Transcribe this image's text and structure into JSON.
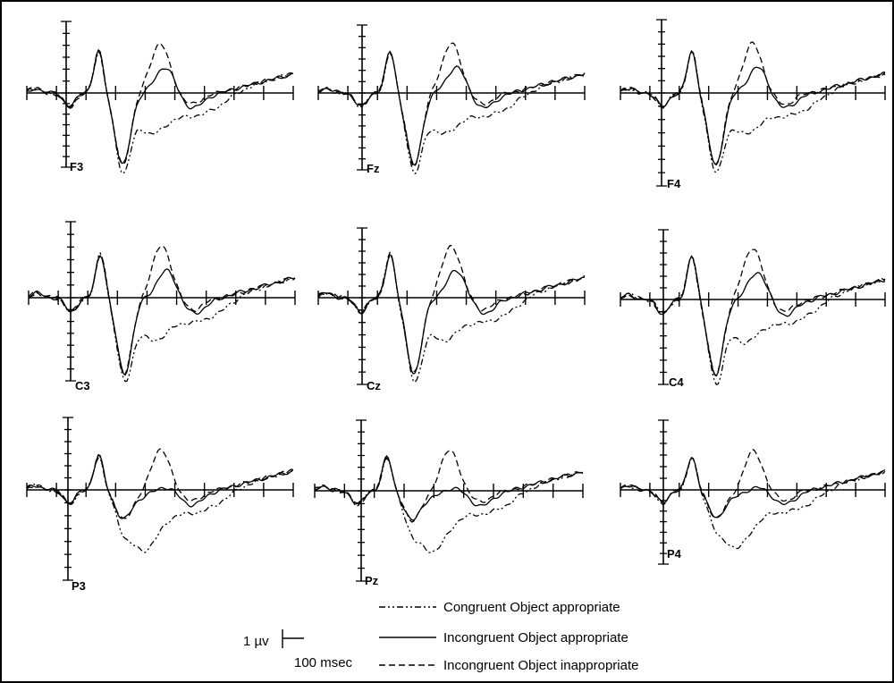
{
  "chart_data": {
    "type": "line",
    "panels": [
      {
        "label": "F3"
      },
      {
        "label": "Fz"
      },
      {
        "label": "F4"
      },
      {
        "label": "C3"
      },
      {
        "label": "Cz"
      },
      {
        "label": "C4"
      },
      {
        "label": "P3"
      },
      {
        "label": "Pz"
      },
      {
        "label": "P4"
      }
    ],
    "series": [
      {
        "name": "Congruent Object appropriate",
        "dash": "dash-dot"
      },
      {
        "name": "Incongruent Object appropriate",
        "dash": "solid"
      },
      {
        "name": "Incongruent Object inappropriate",
        "dash": "dashed"
      }
    ],
    "scale_bar": {
      "amplitude": "1 µv",
      "time": "100 msec"
    }
  }
}
